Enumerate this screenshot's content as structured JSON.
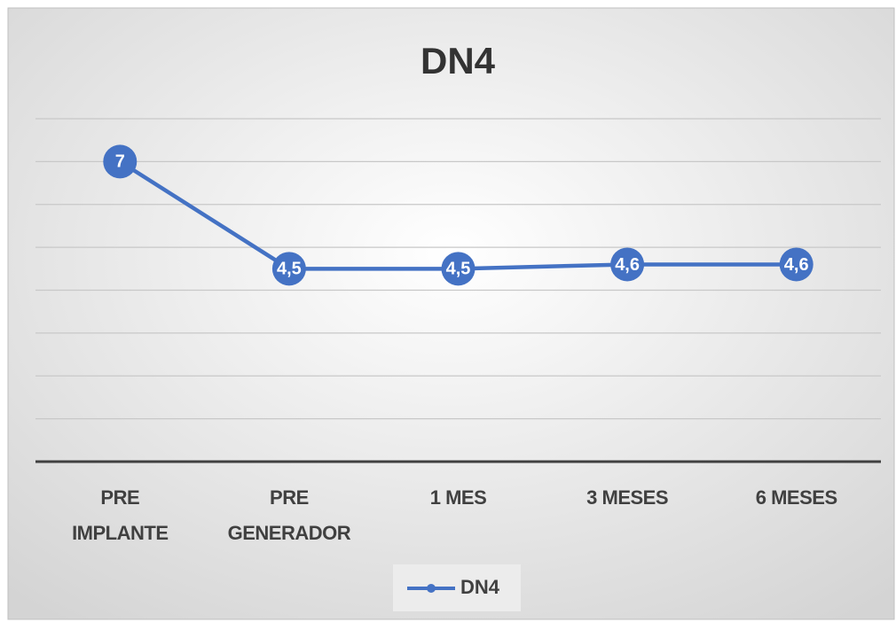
{
  "chart_data": {
    "type": "line",
    "title": "DN4",
    "categories": [
      "PRE\nIMPLANTE",
      "PRE\nGENERADOR",
      "1 MES",
      "3 MESES",
      "6 MESES"
    ],
    "series": [
      {
        "name": "DN4",
        "color": "#4472c4",
        "values": [
          7,
          4.5,
          4.5,
          4.6,
          4.6
        ],
        "value_labels": [
          "7",
          "4,5",
          "4,5",
          "4,6",
          "4,6"
        ]
      }
    ],
    "ylim": [
      0,
      8
    ],
    "yticks": [
      0,
      1,
      2,
      3,
      4,
      5,
      6,
      7,
      8
    ],
    "grid": true,
    "legend": "bottom"
  }
}
